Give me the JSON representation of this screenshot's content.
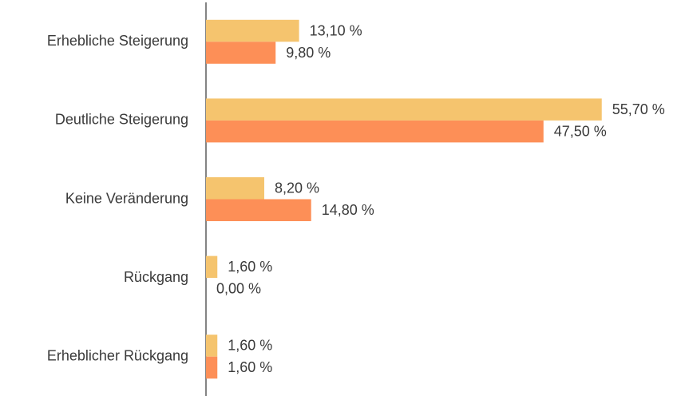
{
  "chart_data": {
    "type": "barh",
    "categories": [
      "Erhebliche Steigerung",
      "Deutliche Steigerung",
      "Keine Veränderung",
      "Rückgang",
      "Erheblicher Rückgang"
    ],
    "series": [
      {
        "color": "#f5c46e",
        "values": [
          13.1,
          55.7,
          8.2,
          1.6,
          1.6
        ],
        "value_labels": [
          "13,10 %",
          "55,70 %",
          "8,20 %",
          "1,60 %",
          "1,60 %"
        ]
      },
      {
        "color": "#fd8f57",
        "values": [
          9.8,
          47.5,
          14.8,
          0,
          1.6
        ],
        "value_labels": [
          "9,80 %",
          "47,50 %",
          "14,80 %",
          "0,00 %",
          "1,60 %"
        ]
      }
    ],
    "xlim": [
      0,
      60
    ]
  }
}
